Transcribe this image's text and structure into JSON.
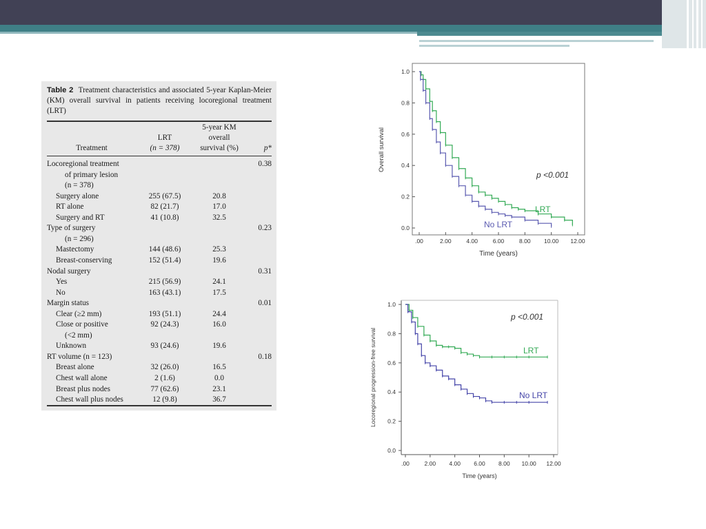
{
  "table": {
    "label": "Table 2",
    "caption": "Treatment characteristics and associated 5-year Kaplan-Meier (KM) overall survival in patients receiving locoregional treatment (LRT)",
    "headers": {
      "treatment": "Treatment",
      "lrt_line1": "LRT",
      "lrt_line2": "(n = 378)",
      "km_line1": "5-year KM",
      "km_line2": "overall",
      "km_line3": "survival (%)",
      "p": "p*"
    },
    "rows": [
      {
        "label": "Locoregional treatment",
        "indent": 0,
        "lrt": "",
        "km": "",
        "p": "0.38"
      },
      {
        "label": "of primary lesion",
        "indent": 2,
        "lrt": "",
        "km": "",
        "p": ""
      },
      {
        "label": "(n = 378)",
        "indent": 2,
        "lrt": "",
        "km": "",
        "p": ""
      },
      {
        "label": "Surgery alone",
        "indent": 1,
        "lrt": "255 (67.5)",
        "km": "20.8",
        "p": ""
      },
      {
        "label": "RT alone",
        "indent": 1,
        "lrt": "82 (21.7)",
        "km": "17.0",
        "p": ""
      },
      {
        "label": "Surgery and RT",
        "indent": 1,
        "lrt": "41 (10.8)",
        "km": "32.5",
        "p": ""
      },
      {
        "label": "Type of surgery",
        "indent": 0,
        "lrt": "",
        "km": "",
        "p": "0.23"
      },
      {
        "label": "(n = 296)",
        "indent": 2,
        "lrt": "",
        "km": "",
        "p": ""
      },
      {
        "label": "Mastectomy",
        "indent": 1,
        "lrt": "144 (48.6)",
        "km": "25.3",
        "p": ""
      },
      {
        "label": "Breast-conserving",
        "indent": 1,
        "lrt": "152 (51.4)",
        "km": "19.6",
        "p": ""
      },
      {
        "label": "Nodal surgery",
        "indent": 0,
        "lrt": "",
        "km": "",
        "p": "0.31"
      },
      {
        "label": "Yes",
        "indent": 1,
        "lrt": "215 (56.9)",
        "km": "24.1",
        "p": ""
      },
      {
        "label": "No",
        "indent": 1,
        "lrt": "163 (43.1)",
        "km": "17.5",
        "p": ""
      },
      {
        "label": "Margin status",
        "indent": 0,
        "lrt": "",
        "km": "",
        "p": "0.01"
      },
      {
        "label": "Clear (≥2 mm)",
        "indent": 1,
        "lrt": "193 (51.1)",
        "km": "24.4",
        "p": ""
      },
      {
        "label": "Close or positive",
        "indent": 1,
        "lrt": "92 (24.3)",
        "km": "16.0",
        "p": ""
      },
      {
        "label": "(<2 mm)",
        "indent": 2,
        "lrt": "",
        "km": "",
        "p": ""
      },
      {
        "label": "Unknown",
        "indent": 1,
        "lrt": "93 (24.6)",
        "km": "19.6",
        "p": ""
      },
      {
        "label": "RT volume (n = 123)",
        "indent": 0,
        "lrt": "",
        "km": "",
        "p": "0.18"
      },
      {
        "label": "Breast alone",
        "indent": 1,
        "lrt": "32 (26.0)",
        "km": "16.5",
        "p": ""
      },
      {
        "label": "Chest wall alone",
        "indent": 1,
        "lrt": "2 (1.6)",
        "km": "0.0",
        "p": ""
      },
      {
        "label": "Breast plus nodes",
        "indent": 1,
        "lrt": "77 (62.6)",
        "km": "23.1",
        "p": ""
      },
      {
        "label": "Chest wall plus nodes",
        "indent": 1,
        "lrt": "12 (9.8)",
        "km": "36.7",
        "p": ""
      }
    ]
  },
  "chart_data": [
    {
      "type": "line",
      "title": "",
      "xlabel": "Time (years)",
      "ylabel": "Overall survival",
      "xlim": [
        0,
        12
      ],
      "ylim": [
        0,
        1
      ],
      "x_ticks": [
        ".00",
        "2.00",
        "4.00",
        "6.00",
        "8.00",
        "10.00",
        "12.00"
      ],
      "y_ticks": [
        "0.0",
        "0.2",
        "0.4",
        "0.6",
        "0.8",
        "1.0"
      ],
      "annotation": "p <0.001",
      "colors": {
        "LRT": "#33aa55",
        "No LRT": "#5a5ab0"
      },
      "series": [
        {
          "name": "LRT",
          "x": [
            0,
            0.15,
            0.3,
            0.5,
            0.8,
            1.0,
            1.3,
            1.6,
            2.0,
            2.5,
            3.0,
            3.5,
            4.0,
            4.5,
            5.0,
            5.5,
            6.0,
            6.5,
            7.0,
            7.5,
            8.0,
            9.0,
            10.0,
            11.0,
            11.6
          ],
          "y": [
            1.0,
            0.98,
            0.95,
            0.89,
            0.81,
            0.75,
            0.68,
            0.61,
            0.53,
            0.45,
            0.38,
            0.32,
            0.27,
            0.23,
            0.21,
            0.19,
            0.17,
            0.15,
            0.13,
            0.12,
            0.11,
            0.09,
            0.07,
            0.05,
            0.02
          ]
        },
        {
          "name": "No LRT",
          "x": [
            0,
            0.1,
            0.3,
            0.5,
            0.8,
            1.0,
            1.3,
            1.6,
            2.0,
            2.5,
            3.0,
            3.5,
            4.0,
            4.5,
            5.0,
            5.5,
            6.0,
            6.5,
            7.0,
            8.0,
            9.0,
            10.0
          ],
          "y": [
            1.0,
            0.95,
            0.88,
            0.8,
            0.7,
            0.63,
            0.55,
            0.48,
            0.4,
            0.33,
            0.27,
            0.21,
            0.17,
            0.14,
            0.12,
            0.1,
            0.09,
            0.08,
            0.07,
            0.05,
            0.03,
            0.01
          ]
        }
      ]
    },
    {
      "type": "line",
      "title": "",
      "xlabel": "Time (years)",
      "ylabel": "Locoregional progression-free survival",
      "xlim": [
        0,
        12
      ],
      "ylim": [
        0,
        1
      ],
      "x_ticks": [
        ".00",
        "2.00",
        "4.00",
        "6.00",
        "8.00",
        "10.00",
        "12.00"
      ],
      "y_ticks": [
        "0.0",
        "0.2",
        "0.4",
        "0.6",
        "0.8",
        "1.0"
      ],
      "annotation": "p <0.001",
      "colors": {
        "LRT": "#33aa55",
        "No LRT": "#4444a8"
      },
      "series": [
        {
          "name": "LRT",
          "x": [
            0,
            0.3,
            0.6,
            1.0,
            1.5,
            2.0,
            2.5,
            3.0,
            3.5,
            4.0,
            4.5,
            5.0,
            5.5,
            6.0,
            7.0,
            8.0,
            9.0,
            10.0,
            11.5
          ],
          "y": [
            1.0,
            0.96,
            0.91,
            0.85,
            0.79,
            0.75,
            0.72,
            0.71,
            0.71,
            0.7,
            0.67,
            0.66,
            0.65,
            0.64,
            0.64,
            0.64,
            0.64,
            0.64,
            0.64
          ]
        },
        {
          "name": "No LRT",
          "x": [
            0,
            0.2,
            0.5,
            0.8,
            1.0,
            1.3,
            1.6,
            2.0,
            2.5,
            3.0,
            3.5,
            4.0,
            4.5,
            5.0,
            5.5,
            6.0,
            6.5,
            7.0,
            8.0,
            9.0,
            10.0,
            11.5
          ],
          "y": [
            1.0,
            0.95,
            0.88,
            0.8,
            0.73,
            0.65,
            0.6,
            0.58,
            0.55,
            0.51,
            0.49,
            0.45,
            0.42,
            0.39,
            0.37,
            0.36,
            0.34,
            0.33,
            0.33,
            0.33,
            0.33,
            0.33
          ]
        }
      ]
    }
  ]
}
